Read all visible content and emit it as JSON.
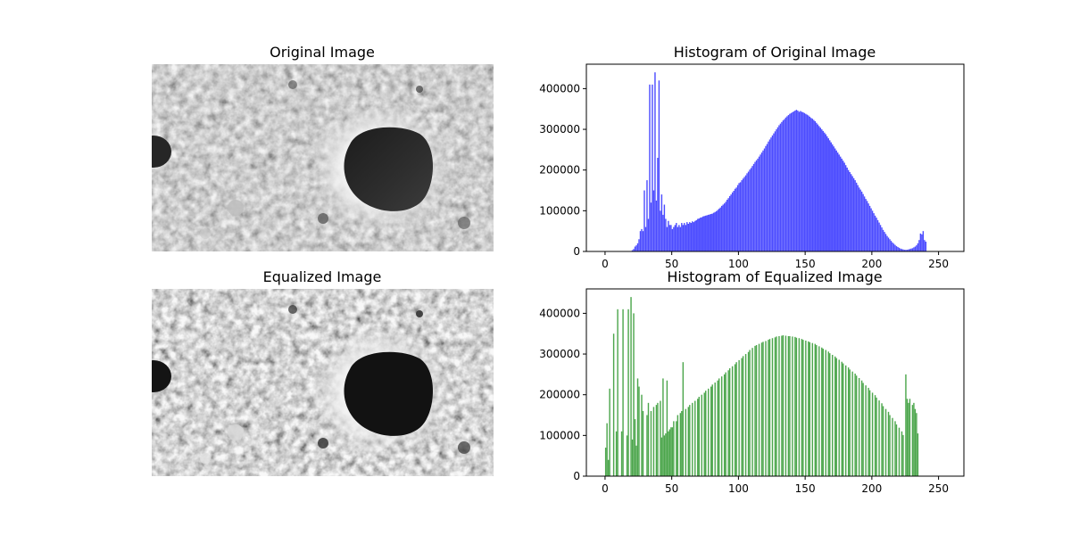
{
  "figure": {
    "panels": {
      "original_image": {
        "title": "Original Image"
      },
      "equalized_image": {
        "title": "Equalized Image"
      }
    }
  },
  "chart_data": [
    {
      "type": "bar",
      "title": "Histogram of Original Image",
      "xlabel": "",
      "ylabel": "",
      "xlim": [
        -14,
        269
      ],
      "ylim": [
        0,
        460000
      ],
      "xticks": [
        0,
        50,
        100,
        150,
        200,
        250
      ],
      "yticks": [
        0,
        100000,
        200000,
        300000,
        400000
      ],
      "color": "#4c4cff",
      "grid": false,
      "bins": {
        "start": 0,
        "width": 1
      },
      "values": [
        0,
        0,
        0,
        0,
        0,
        0,
        0,
        0,
        0,
        0,
        0,
        0,
        0,
        0,
        0,
        0,
        0,
        500,
        1000,
        1000,
        3000,
        6000,
        12000,
        15000,
        20000,
        30000,
        50000,
        55000,
        50000,
        150000,
        60000,
        175000,
        80000,
        410000,
        120000,
        410000,
        150000,
        440000,
        125000,
        230000,
        420000,
        100000,
        140000,
        90000,
        115000,
        80000,
        60000,
        75000,
        65000,
        65000,
        55000,
        60000,
        65000,
        70000,
        60000,
        65000,
        60000,
        70000,
        65000,
        70000,
        65000,
        72000,
        68000,
        72000,
        70000,
        74000,
        72000,
        75000,
        77000,
        80000,
        81000,
        83000,
        84000,
        86000,
        87000,
        88000,
        89000,
        90000,
        91000,
        92000,
        93000,
        95000,
        97000,
        99000,
        102000,
        105000,
        108000,
        112000,
        115000,
        118000,
        122000,
        127000,
        131000,
        136000,
        140000,
        145000,
        149000,
        154000,
        157000,
        163000,
        168000,
        170000,
        175000,
        179000,
        183000,
        187000,
        192000,
        196000,
        201000,
        205000,
        210000,
        215000,
        220000,
        224000,
        228000,
        233000,
        238000,
        243000,
        248000,
        253000,
        259000,
        264000,
        270000,
        275000,
        280000,
        285000,
        290000,
        295000,
        300000,
        305000,
        310000,
        314000,
        318000,
        322000,
        325000,
        329000,
        332000,
        335000,
        338000,
        340000,
        342000,
        344000,
        346000,
        348000,
        346000,
        343000,
        345000,
        343000,
        342000,
        340000,
        338000,
        336000,
        334000,
        331000,
        328000,
        326000,
        323000,
        320000,
        316000,
        312000,
        308000,
        304000,
        300000,
        296000,
        292000,
        288000,
        283000,
        278000,
        273000,
        268000,
        263000,
        258000,
        253000,
        248000,
        243000,
        238000,
        233000,
        228000,
        223000,
        218000,
        212000,
        206000,
        200000,
        195000,
        190000,
        185000,
        180000,
        175000,
        169000,
        163000,
        157000,
        152000,
        147000,
        141000,
        135000,
        129000,
        124000,
        118000,
        112000,
        106000,
        100000,
        94000,
        88000,
        83000,
        77000,
        71000,
        65000,
        59000,
        53000,
        48000,
        43000,
        38000,
        34000,
        30000,
        26000,
        22000,
        19000,
        16000,
        13000,
        11000,
        9000,
        7000,
        6000,
        5000,
        4000,
        4000,
        4000,
        5000,
        6000,
        7000,
        8000,
        10000,
        12000,
        15000,
        20000,
        28000,
        44000,
        42000,
        50000,
        28000,
        24000
      ]
    },
    {
      "type": "bar",
      "title": "Histogram of Equalized Image",
      "xlabel": "",
      "ylabel": "",
      "xlim": [
        -14,
        269
      ],
      "ylim": [
        0,
        460000
      ],
      "xticks": [
        0,
        50,
        100,
        150,
        200,
        250
      ],
      "yticks": [
        0,
        100000,
        200000,
        300000,
        400000
      ],
      "color": "#4ca64c",
      "grid": false,
      "bins": {
        "start": 0,
        "width": 1
      },
      "values": [
        70000,
        130000,
        40000,
        215000,
        0,
        0,
        350000,
        0,
        110000,
        410000,
        0,
        0,
        110000,
        410000,
        0,
        0,
        100000,
        410000,
        0,
        440000,
        90000,
        400000,
        140000,
        75000,
        240000,
        220000,
        0,
        200000,
        160000,
        0,
        0,
        150000,
        180000,
        0,
        160000,
        0,
        170000,
        0,
        175000,
        180000,
        0,
        185000,
        95000,
        240000,
        100000,
        105000,
        235000,
        110000,
        115000,
        120000,
        120000,
        135000,
        0,
        135000,
        150000,
        0,
        155000,
        160000,
        280000,
        0,
        165000,
        0,
        170000,
        175000,
        0,
        180000,
        0,
        185000,
        0,
        190000,
        195000,
        0,
        200000,
        0,
        205000,
        210000,
        0,
        215000,
        0,
        220000,
        225000,
        0,
        230000,
        0,
        235000,
        240000,
        0,
        245000,
        0,
        250000,
        255000,
        0,
        260000,
        265000,
        0,
        270000,
        0,
        275000,
        280000,
        0,
        285000,
        0,
        290000,
        295000,
        0,
        300000,
        0,
        305000,
        310000,
        0,
        315000,
        0,
        320000,
        322000,
        0,
        325000,
        0,
        328000,
        330000,
        0,
        332000,
        0,
        335000,
        337000,
        0,
        339000,
        0,
        341000,
        343000,
        0,
        344000,
        0,
        345000,
        346000,
        0,
        345000,
        0,
        344000,
        344000,
        0,
        343000,
        0,
        342000,
        340000,
        0,
        339000,
        0,
        337000,
        335000,
        0,
        333000,
        0,
        331000,
        329000,
        0,
        327000,
        0,
        325000,
        322000,
        0,
        319000,
        0,
        316000,
        313000,
        0,
        310000,
        0,
        306000,
        302000,
        0,
        298000,
        0,
        294000,
        290000,
        0,
        286000,
        0,
        281000,
        277000,
        0,
        272000,
        0,
        267000,
        262000,
        0,
        257000,
        0,
        252000,
        247000,
        0,
        241000,
        0,
        235000,
        229000,
        0,
        223000,
        0,
        217000,
        211000,
        0,
        205000,
        0,
        199000,
        193000,
        0,
        186000,
        0,
        179000,
        172000,
        0,
        165000,
        0,
        158000,
        150000,
        0,
        143000,
        0,
        135000,
        127000,
        0,
        119000,
        0,
        110000,
        101000,
        0,
        250000,
        190000,
        180000,
        190000,
        0,
        175000,
        180000,
        165000,
        155000,
        105000
      ]
    }
  ]
}
